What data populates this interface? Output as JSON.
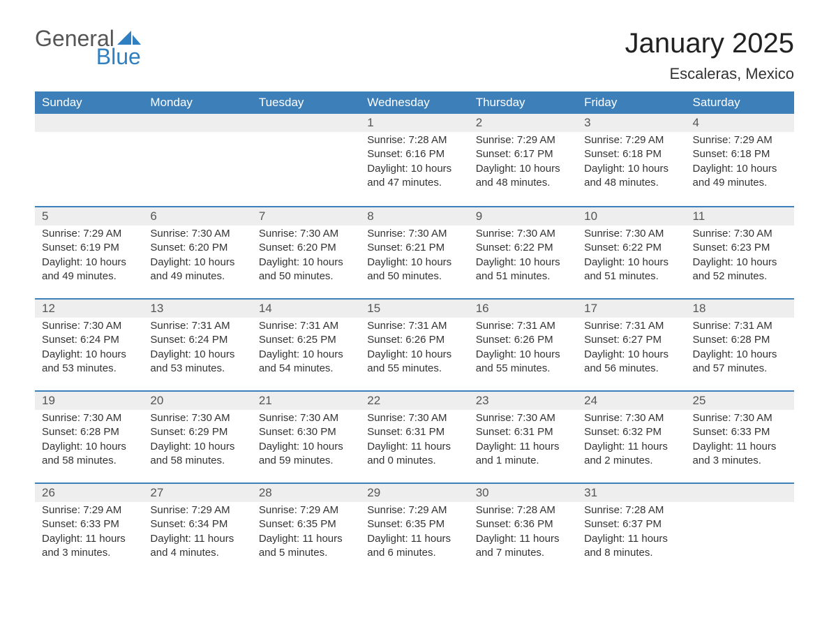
{
  "logo": {
    "general": "General",
    "blue": "Blue"
  },
  "title": "January 2025",
  "location": "Escaleras, Mexico",
  "colors": {
    "header_bg": "#3c7fb9",
    "header_text": "#ffffff",
    "daynum_bg": "#eeeeee",
    "day_border": "#3c7fb9",
    "logo_blue": "#2f7fb9",
    "text": "#333333",
    "background": "#ffffff"
  },
  "day_headers": [
    "Sunday",
    "Monday",
    "Tuesday",
    "Wednesday",
    "Thursday",
    "Friday",
    "Saturday"
  ],
  "weeks": [
    [
      {
        "blank": true
      },
      {
        "blank": true
      },
      {
        "blank": true
      },
      {
        "day": "1",
        "sunrise": "Sunrise: 7:28 AM",
        "sunset": "Sunset: 6:16 PM",
        "daylight1": "Daylight: 10 hours",
        "daylight2": "and 47 minutes."
      },
      {
        "day": "2",
        "sunrise": "Sunrise: 7:29 AM",
        "sunset": "Sunset: 6:17 PM",
        "daylight1": "Daylight: 10 hours",
        "daylight2": "and 48 minutes."
      },
      {
        "day": "3",
        "sunrise": "Sunrise: 7:29 AM",
        "sunset": "Sunset: 6:18 PM",
        "daylight1": "Daylight: 10 hours",
        "daylight2": "and 48 minutes."
      },
      {
        "day": "4",
        "sunrise": "Sunrise: 7:29 AM",
        "sunset": "Sunset: 6:18 PM",
        "daylight1": "Daylight: 10 hours",
        "daylight2": "and 49 minutes."
      }
    ],
    [
      {
        "day": "5",
        "sunrise": "Sunrise: 7:29 AM",
        "sunset": "Sunset: 6:19 PM",
        "daylight1": "Daylight: 10 hours",
        "daylight2": "and 49 minutes."
      },
      {
        "day": "6",
        "sunrise": "Sunrise: 7:30 AM",
        "sunset": "Sunset: 6:20 PM",
        "daylight1": "Daylight: 10 hours",
        "daylight2": "and 49 minutes."
      },
      {
        "day": "7",
        "sunrise": "Sunrise: 7:30 AM",
        "sunset": "Sunset: 6:20 PM",
        "daylight1": "Daylight: 10 hours",
        "daylight2": "and 50 minutes."
      },
      {
        "day": "8",
        "sunrise": "Sunrise: 7:30 AM",
        "sunset": "Sunset: 6:21 PM",
        "daylight1": "Daylight: 10 hours",
        "daylight2": "and 50 minutes."
      },
      {
        "day": "9",
        "sunrise": "Sunrise: 7:30 AM",
        "sunset": "Sunset: 6:22 PM",
        "daylight1": "Daylight: 10 hours",
        "daylight2": "and 51 minutes."
      },
      {
        "day": "10",
        "sunrise": "Sunrise: 7:30 AM",
        "sunset": "Sunset: 6:22 PM",
        "daylight1": "Daylight: 10 hours",
        "daylight2": "and 51 minutes."
      },
      {
        "day": "11",
        "sunrise": "Sunrise: 7:30 AM",
        "sunset": "Sunset: 6:23 PM",
        "daylight1": "Daylight: 10 hours",
        "daylight2": "and 52 minutes."
      }
    ],
    [
      {
        "day": "12",
        "sunrise": "Sunrise: 7:30 AM",
        "sunset": "Sunset: 6:24 PM",
        "daylight1": "Daylight: 10 hours",
        "daylight2": "and 53 minutes."
      },
      {
        "day": "13",
        "sunrise": "Sunrise: 7:31 AM",
        "sunset": "Sunset: 6:24 PM",
        "daylight1": "Daylight: 10 hours",
        "daylight2": "and 53 minutes."
      },
      {
        "day": "14",
        "sunrise": "Sunrise: 7:31 AM",
        "sunset": "Sunset: 6:25 PM",
        "daylight1": "Daylight: 10 hours",
        "daylight2": "and 54 minutes."
      },
      {
        "day": "15",
        "sunrise": "Sunrise: 7:31 AM",
        "sunset": "Sunset: 6:26 PM",
        "daylight1": "Daylight: 10 hours",
        "daylight2": "and 55 minutes."
      },
      {
        "day": "16",
        "sunrise": "Sunrise: 7:31 AM",
        "sunset": "Sunset: 6:26 PM",
        "daylight1": "Daylight: 10 hours",
        "daylight2": "and 55 minutes."
      },
      {
        "day": "17",
        "sunrise": "Sunrise: 7:31 AM",
        "sunset": "Sunset: 6:27 PM",
        "daylight1": "Daylight: 10 hours",
        "daylight2": "and 56 minutes."
      },
      {
        "day": "18",
        "sunrise": "Sunrise: 7:31 AM",
        "sunset": "Sunset: 6:28 PM",
        "daylight1": "Daylight: 10 hours",
        "daylight2": "and 57 minutes."
      }
    ],
    [
      {
        "day": "19",
        "sunrise": "Sunrise: 7:30 AM",
        "sunset": "Sunset: 6:28 PM",
        "daylight1": "Daylight: 10 hours",
        "daylight2": "and 58 minutes."
      },
      {
        "day": "20",
        "sunrise": "Sunrise: 7:30 AM",
        "sunset": "Sunset: 6:29 PM",
        "daylight1": "Daylight: 10 hours",
        "daylight2": "and 58 minutes."
      },
      {
        "day": "21",
        "sunrise": "Sunrise: 7:30 AM",
        "sunset": "Sunset: 6:30 PM",
        "daylight1": "Daylight: 10 hours",
        "daylight2": "and 59 minutes."
      },
      {
        "day": "22",
        "sunrise": "Sunrise: 7:30 AM",
        "sunset": "Sunset: 6:31 PM",
        "daylight1": "Daylight: 11 hours",
        "daylight2": "and 0 minutes."
      },
      {
        "day": "23",
        "sunrise": "Sunrise: 7:30 AM",
        "sunset": "Sunset: 6:31 PM",
        "daylight1": "Daylight: 11 hours",
        "daylight2": "and 1 minute."
      },
      {
        "day": "24",
        "sunrise": "Sunrise: 7:30 AM",
        "sunset": "Sunset: 6:32 PM",
        "daylight1": "Daylight: 11 hours",
        "daylight2": "and 2 minutes."
      },
      {
        "day": "25",
        "sunrise": "Sunrise: 7:30 AM",
        "sunset": "Sunset: 6:33 PM",
        "daylight1": "Daylight: 11 hours",
        "daylight2": "and 3 minutes."
      }
    ],
    [
      {
        "day": "26",
        "sunrise": "Sunrise: 7:29 AM",
        "sunset": "Sunset: 6:33 PM",
        "daylight1": "Daylight: 11 hours",
        "daylight2": "and 3 minutes."
      },
      {
        "day": "27",
        "sunrise": "Sunrise: 7:29 AM",
        "sunset": "Sunset: 6:34 PM",
        "daylight1": "Daylight: 11 hours",
        "daylight2": "and 4 minutes."
      },
      {
        "day": "28",
        "sunrise": "Sunrise: 7:29 AM",
        "sunset": "Sunset: 6:35 PM",
        "daylight1": "Daylight: 11 hours",
        "daylight2": "and 5 minutes."
      },
      {
        "day": "29",
        "sunrise": "Sunrise: 7:29 AM",
        "sunset": "Sunset: 6:35 PM",
        "daylight1": "Daylight: 11 hours",
        "daylight2": "and 6 minutes."
      },
      {
        "day": "30",
        "sunrise": "Sunrise: 7:28 AM",
        "sunset": "Sunset: 6:36 PM",
        "daylight1": "Daylight: 11 hours",
        "daylight2": "and 7 minutes."
      },
      {
        "day": "31",
        "sunrise": "Sunrise: 7:28 AM",
        "sunset": "Sunset: 6:37 PM",
        "daylight1": "Daylight: 11 hours",
        "daylight2": "and 8 minutes."
      },
      {
        "blank": true
      }
    ]
  ]
}
